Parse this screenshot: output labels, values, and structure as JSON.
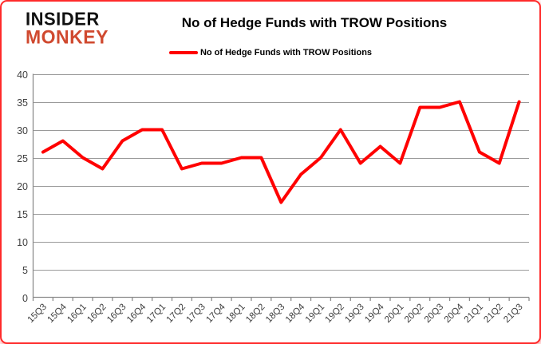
{
  "logo": {
    "line1": "INSIDER",
    "line2": "MONKEY"
  },
  "header": {
    "title": "No of Hedge Funds with TROW Positions"
  },
  "legend": {
    "label": "No of Hedge Funds with TROW Positions"
  },
  "colors": {
    "line": "#ff0000",
    "logo_accent": "#d0492f",
    "grid": "#9a9a9a",
    "axis": "#8c8c8c",
    "axis_text": "#404040",
    "frame": "#ff2a2a"
  },
  "chart_data": {
    "type": "line",
    "title": "No of Hedge Funds with TROW Positions",
    "legend": "No of Hedge Funds with TROW Positions",
    "categories": [
      "15Q3",
      "15Q4",
      "16Q1",
      "16Q2",
      "16Q3",
      "16Q4",
      "17Q1",
      "17Q2",
      "17Q3",
      "17Q4",
      "18Q1",
      "18Q2",
      "18Q3",
      "18Q4",
      "19Q1",
      "19Q2",
      "19Q3",
      "19Q4",
      "20Q1",
      "20Q2",
      "20Q3",
      "20Q4",
      "21Q1",
      "21Q2",
      "21Q3"
    ],
    "series": [
      {
        "name": "No of Hedge Funds with TROW Positions",
        "color": "#ff0000",
        "values": [
          26,
          28,
          25,
          23,
          28,
          30,
          30,
          23,
          24,
          24,
          25,
          25,
          17,
          22,
          25,
          30,
          24,
          27,
          24,
          34,
          34,
          35,
          26,
          24,
          35
        ]
      }
    ],
    "xlabel": "",
    "ylabel": "",
    "ylim": [
      0,
      40
    ],
    "ytick_step": 5,
    "grid": "horizontal",
    "legend_position": "top"
  }
}
